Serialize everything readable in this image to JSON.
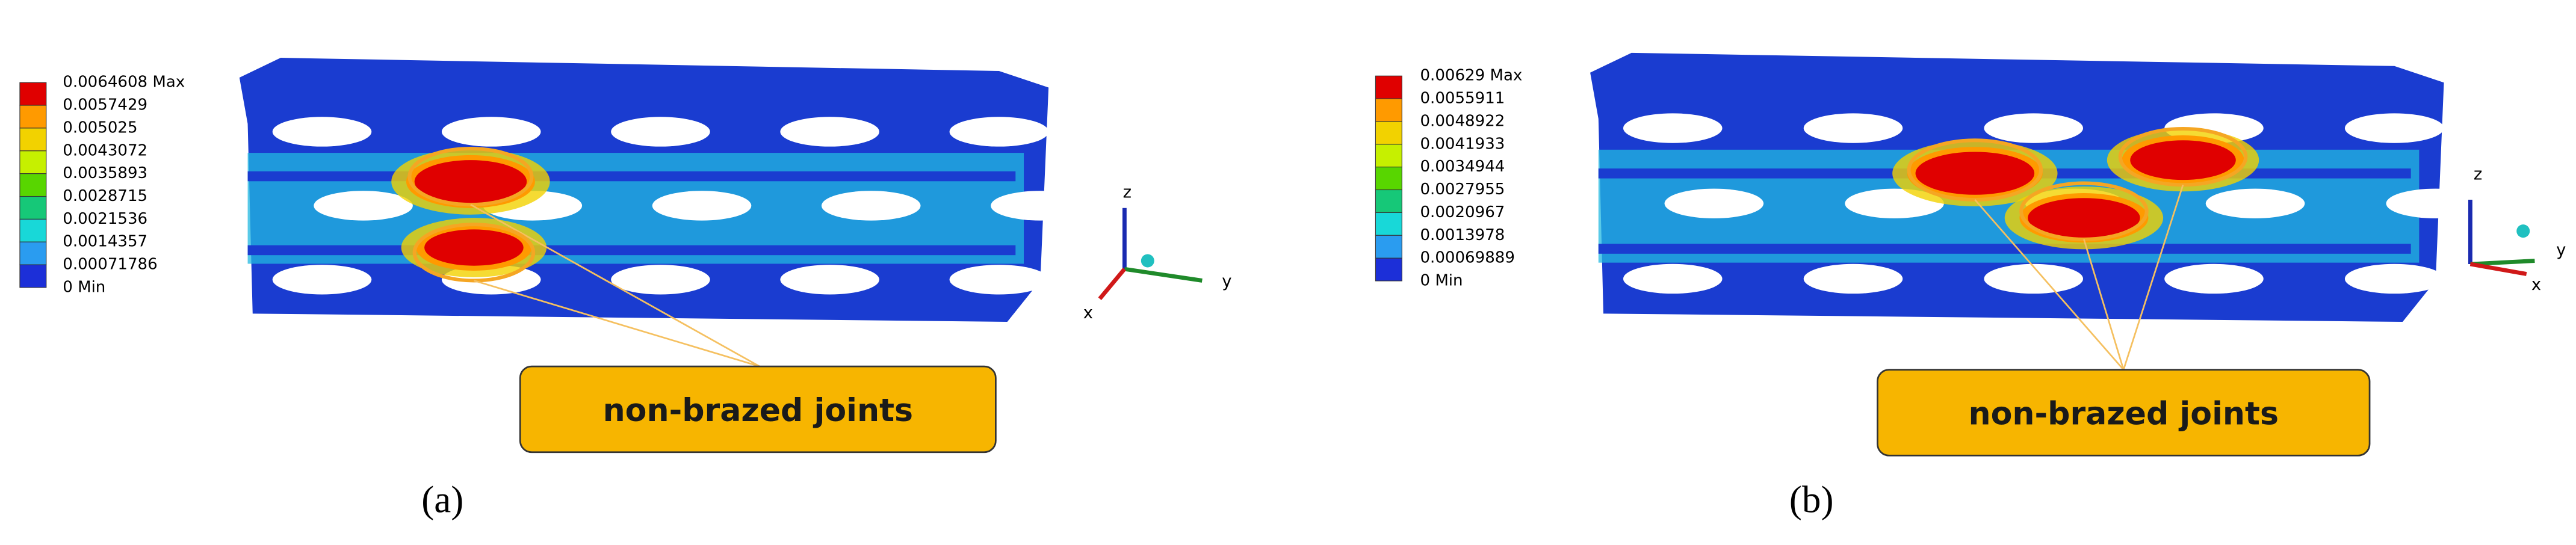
{
  "panels": [
    {
      "legend": [
        "0.0064608 Max",
        "0.0057429",
        "0.005025",
        "0.0043072",
        "0.0035893",
        "0.0028715",
        "0.0021536",
        "0.0014357",
        "0.00071786",
        "0 Min"
      ],
      "axes": {
        "z": "z",
        "y": "y",
        "x": "x"
      },
      "annotation": "non-brazed joints",
      "caption": "(a)"
    },
    {
      "legend": [
        "0.00629 Max",
        "0.0055911",
        "0.0048922",
        "0.0041933",
        "0.0034944",
        "0.0027955",
        "0.0020967",
        "0.0013978",
        "0.00069889",
        "0 Min"
      ],
      "axes": {
        "z": "z",
        "y": "y",
        "x": "x"
      },
      "annotation": "non-brazed joints",
      "caption": "(b)"
    }
  ]
}
